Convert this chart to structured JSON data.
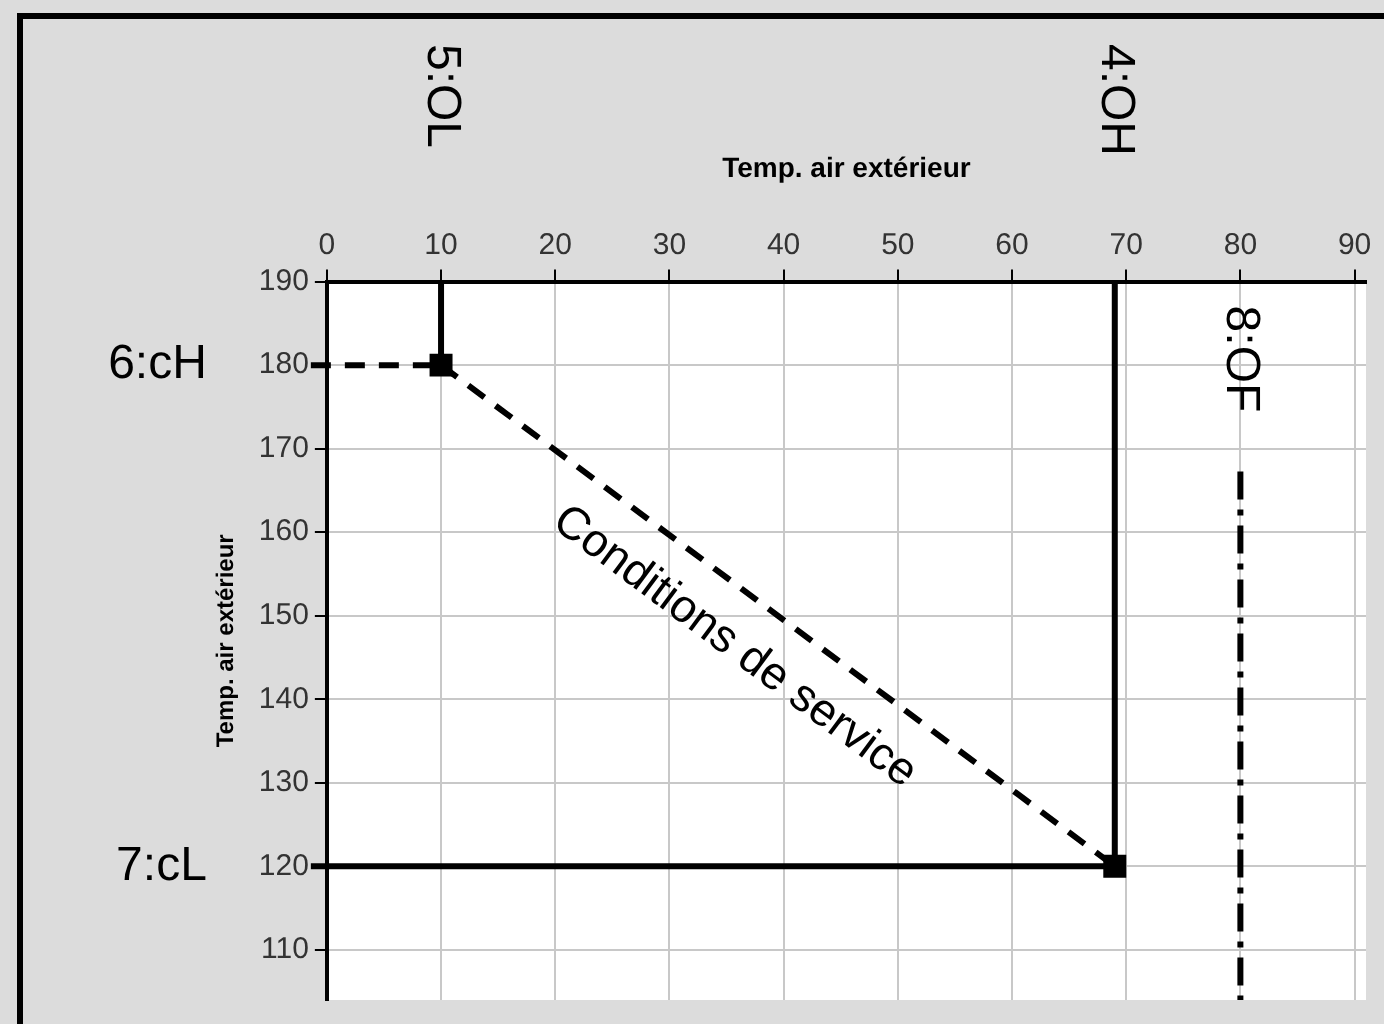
{
  "chart_data": {
    "type": "line",
    "xlabel": "Temp. air extérieur",
    "ylabel": "Temp. air extérieur",
    "xlim": [
      0,
      91
    ],
    "xticks": [
      0,
      10,
      20,
      30,
      40,
      50,
      60,
      70,
      80,
      90
    ],
    "ylim": [
      104,
      190
    ],
    "yticks": [
      110,
      120,
      130,
      140,
      150,
      160,
      170,
      180,
      190
    ],
    "series": [
      {
        "name": "Conditions de service",
        "color": "#000000",
        "x": [
          10,
          69
        ],
        "values": [
          180,
          120
        ],
        "line_style": "dashed",
        "marker": "square"
      }
    ],
    "ref_lines": [
      {
        "axis": "x",
        "value": 10,
        "label": "5:OL",
        "line_style": "solid",
        "color": "#000000"
      },
      {
        "axis": "x",
        "value": 69,
        "label": "4:OH",
        "line_style": "solid",
        "color": "#000000"
      },
      {
        "axis": "x",
        "value": 80,
        "label": "8:OF",
        "line_style": "dashdot",
        "color": "#000000"
      },
      {
        "axis": "y",
        "value": 180,
        "label": "6:cH",
        "line_style": "dashed",
        "color": "#000000"
      },
      {
        "axis": "y",
        "value": 120,
        "label": "7:cL",
        "line_style": "solid",
        "color": "#000000"
      }
    ],
    "grid": true,
    "legend": false
  }
}
